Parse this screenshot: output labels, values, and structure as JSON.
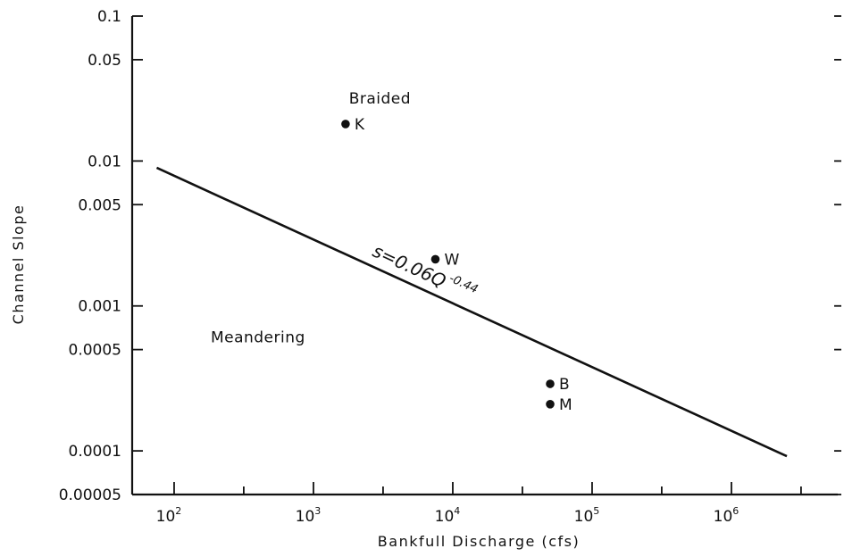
{
  "chart_data": {
    "type": "scatter",
    "xlabel": "Bankfull Discharge (cfs)",
    "ylabel": "Channel Slope",
    "x_scale": "log",
    "y_scale": "log",
    "xlim": [
      50,
      5000000
    ],
    "ylim": [
      5e-05,
      0.1
    ],
    "x_ticks": [
      {
        "value": 100,
        "base": "10",
        "exp": "2"
      },
      {
        "value": 1000,
        "base": "10",
        "exp": "3"
      },
      {
        "value": 10000,
        "base": "10",
        "exp": "4"
      },
      {
        "value": 100000,
        "base": "10",
        "exp": "5"
      },
      {
        "value": 1000000,
        "base": "10",
        "exp": "6"
      }
    ],
    "y_ticks": [
      {
        "value": 0.1,
        "label": "0.1"
      },
      {
        "value": 0.05,
        "label": "0.05"
      },
      {
        "value": 0.01,
        "label": "0.01"
      },
      {
        "value": 0.005,
        "label": "0.005"
      },
      {
        "value": 0.001,
        "label": "0.001"
      },
      {
        "value": 0.0005,
        "label": "0.0005"
      },
      {
        "value": 0.0001,
        "label": "0.0001"
      },
      {
        "value": 5e-05,
        "label": "0.00005"
      }
    ],
    "points": [
      {
        "label": "K",
        "x": 1700,
        "y": 0.018
      },
      {
        "label": "W",
        "x": 7500,
        "y": 0.0021
      },
      {
        "label": "B",
        "x": 50000,
        "y": 0.00029
      },
      {
        "label": "M",
        "x": 50000,
        "y": 0.00021
      }
    ],
    "fit_line": {
      "equation_base": "s=0.06Q",
      "equation_exp": "-0.44",
      "x_range": [
        75,
        2500000
      ],
      "coefficient": 0.06,
      "exponent": -0.44
    },
    "regions": [
      {
        "label": "Braided",
        "x": 3000,
        "y": 0.025
      },
      {
        "label": "Meandering",
        "x": 400,
        "y": 0.00056
      }
    ],
    "grid": false
  }
}
